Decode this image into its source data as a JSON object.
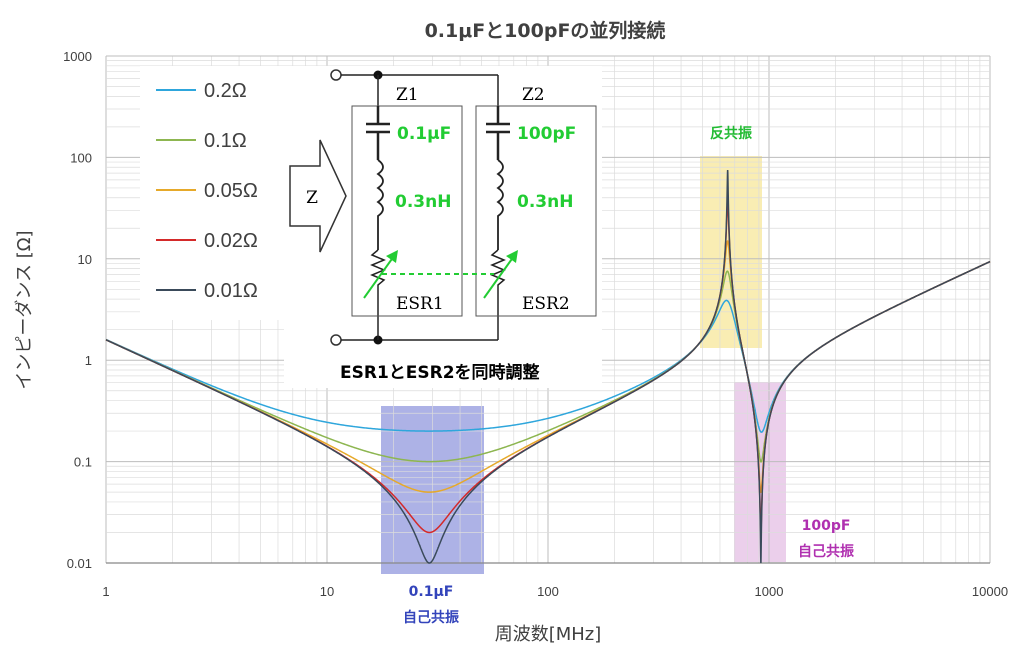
{
  "chart_data": {
    "type": "line",
    "title": "0.1μFと100pFの並列接続",
    "xlabel": "周波数[MHz]",
    "ylabel": "インピーダンス [Ω]",
    "xscale": "log",
    "yscale": "log",
    "xlim": [
      1,
      10000
    ],
    "ylim": [
      0.01,
      1000
    ],
    "x_ticks": [
      "1",
      "10",
      "100",
      "1000",
      "10000"
    ],
    "y_ticks": [
      "0.01",
      "0.1",
      "1",
      "10",
      "100",
      "1000"
    ],
    "grid": true,
    "legend_position": "top-left",
    "circuit": {
      "c1": 1e-07,
      "c2": 1e-10,
      "l1": 3e-10,
      "l2": 3e-10
    },
    "series": [
      {
        "name": "0.2Ω",
        "esr": 0.2,
        "color": "#2ea6dc"
      },
      {
        "name": "0.1Ω",
        "esr": 0.1,
        "color": "#8db650"
      },
      {
        "name": "0.05Ω",
        "esr": 0.05,
        "color": "#e6a92a"
      },
      {
        "name": "0.02Ω",
        "esr": 0.02,
        "color": "#d42a2a"
      },
      {
        "name": "0.01Ω",
        "esr": 0.01,
        "color": "#3a4a5a"
      }
    ],
    "annotations": {
      "antiresonance": "反共振",
      "self_res_100pf_a": "100pF",
      "self_res_100pf_b": "自己共振",
      "self_res_01uf_a": "0.1μF",
      "self_res_01uf_b": "自己共振"
    }
  },
  "diagram": {
    "z1": "Z1",
    "z2": "Z2",
    "z_arrow": "Z",
    "c1_label": "0.1μF",
    "c2_label": "100pF",
    "l1_label": "0.3nH",
    "l2_label": "0.3nH",
    "esr1": "ESR1",
    "esr2": "ESR2",
    "note": "ESR1とESR2を同時調整"
  },
  "colors": {
    "antires_box": "#f7e79a",
    "selfres_100pf_box": "#e6c3e6",
    "selfres_01uf_box": "#8a92dc",
    "antires_text": "#22bb33",
    "selfres_100pf_text": "#b030b0",
    "selfres_01uf_text": "#3344bb",
    "circuit_green": "#22cc33"
  }
}
